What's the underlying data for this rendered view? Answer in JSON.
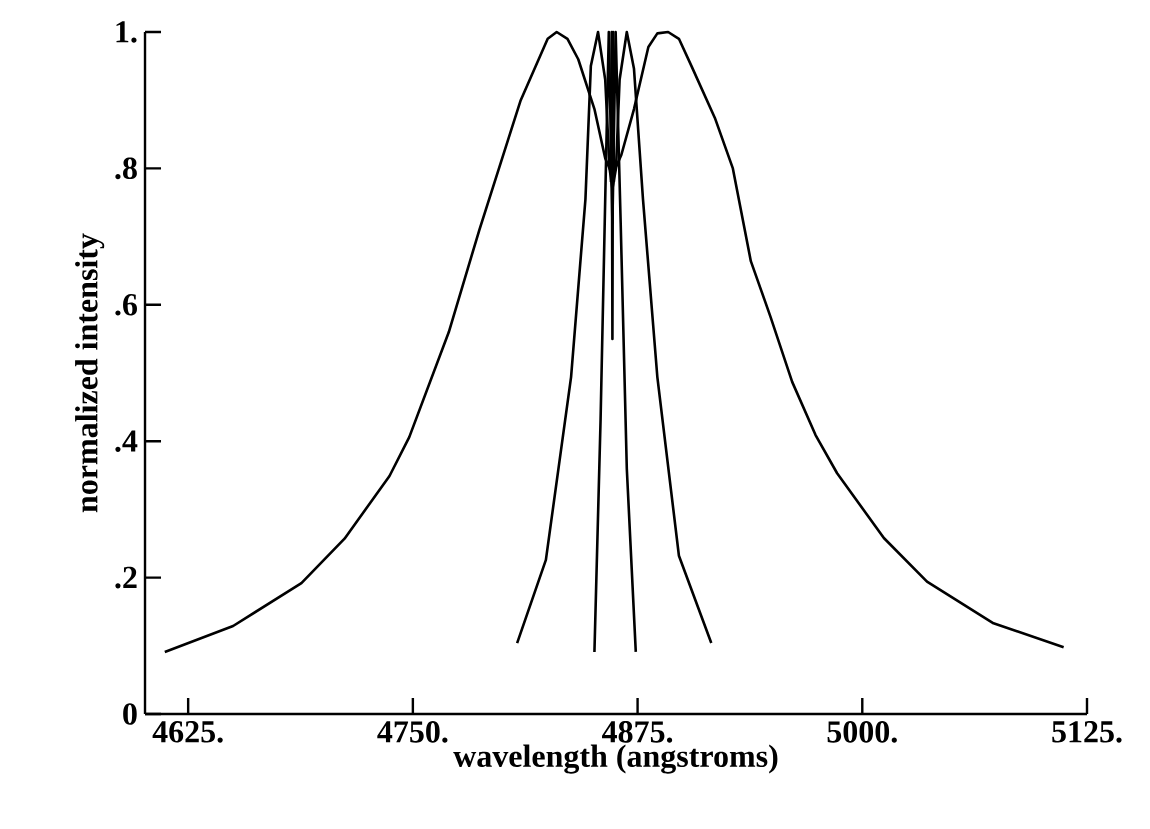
{
  "chart_data": {
    "type": "line",
    "xlabel": "wavelength (angstroms)",
    "ylabel": "normalized intensity",
    "xlim": [
      4601,
      5125
    ],
    "ylim": [
      0,
      1
    ],
    "xticks": [
      {
        "value": 4625,
        "label": "4625."
      },
      {
        "value": 4750,
        "label": "4750."
      },
      {
        "value": 4875,
        "label": "4875."
      },
      {
        "value": 5000,
        "label": "5000."
      },
      {
        "value": 5125,
        "label": "5125."
      }
    ],
    "yticks": [
      {
        "value": 0,
        "label": "0"
      },
      {
        "value": 0.2,
        "label": ".2"
      },
      {
        "value": 0.4,
        "label": ".4"
      },
      {
        "value": 0.6,
        "label": ".6"
      },
      {
        "value": 0.8,
        "label": ".8"
      },
      {
        "value": 1,
        "label": "1."
      }
    ],
    "series": [
      {
        "color": "#000000",
        "x": [
          4612,
          4650,
          4688,
          4712,
          4737,
          4748,
          4770,
          4787,
          4810,
          4825,
          4830,
          4836,
          4842,
          4851,
          4857,
          4861,
          4866,
          4873,
          4881,
          4886,
          4892,
          4898,
          4905,
          4918,
          4928,
          4938,
          4949,
          4961,
          4974,
          4986,
          5012,
          5036,
          5073,
          5112
        ],
        "values": [
          0.091,
          0.129,
          0.192,
          0.257,
          0.349,
          0.406,
          0.56,
          0.71,
          0.9,
          0.99,
          1.0,
          0.99,
          0.96,
          0.887,
          0.815,
          0.79,
          0.82,
          0.887,
          0.978,
          0.998,
          1.0,
          0.99,
          0.95,
          0.874,
          0.8,
          0.664,
          0.582,
          0.487,
          0.409,
          0.353,
          0.258,
          0.194,
          0.133,
          0.098
        ]
      },
      {
        "color": "#000000",
        "x": [
          4808,
          4824,
          4838,
          4846,
          4849,
          4853,
          4857,
          4859.4,
          4861,
          4863,
          4865,
          4869,
          4873,
          4878,
          4886,
          4898,
          4916
        ],
        "values": [
          0.104,
          0.226,
          0.494,
          0.755,
          0.95,
          1.0,
          0.93,
          0.8,
          0.77,
          0.8,
          0.93,
          1.0,
          0.946,
          0.755,
          0.494,
          0.232,
          0.104
        ]
      },
      {
        "color": "#000000",
        "x": [
          4851,
          4854.4,
          4857,
          4859,
          4861,
          4862.8,
          4865.6,
          4869,
          4874
        ],
        "values": [
          0.091,
          0.43,
          0.755,
          1.0,
          0.72,
          1.0,
          0.72,
          0.36,
          0.091
        ]
      },
      {
        "color": "#000000",
        "x": [
          4860.2,
          4860.6,
          4861,
          4861.4,
          4861.8
        ],
        "values": [
          0.78,
          1.0,
          0.55,
          1.0,
          0.78
        ]
      }
    ]
  }
}
